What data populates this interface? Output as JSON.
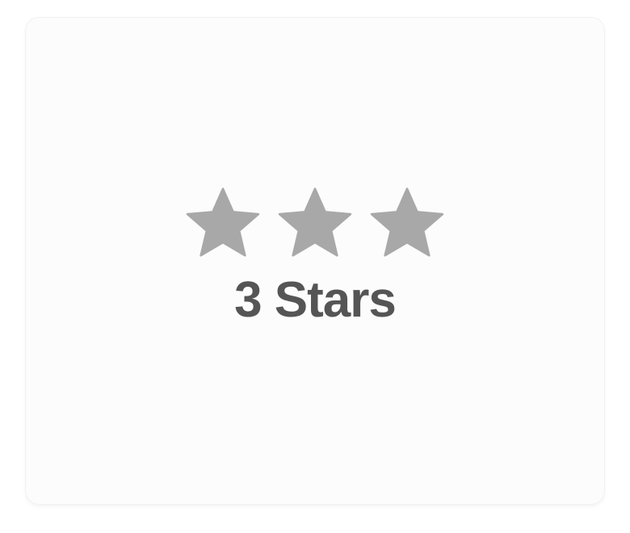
{
  "rating": {
    "value": 3,
    "label": "3 Stars",
    "icon": "star-icon",
    "star_color": "#a8a8a8",
    "text_color": "#555555"
  }
}
